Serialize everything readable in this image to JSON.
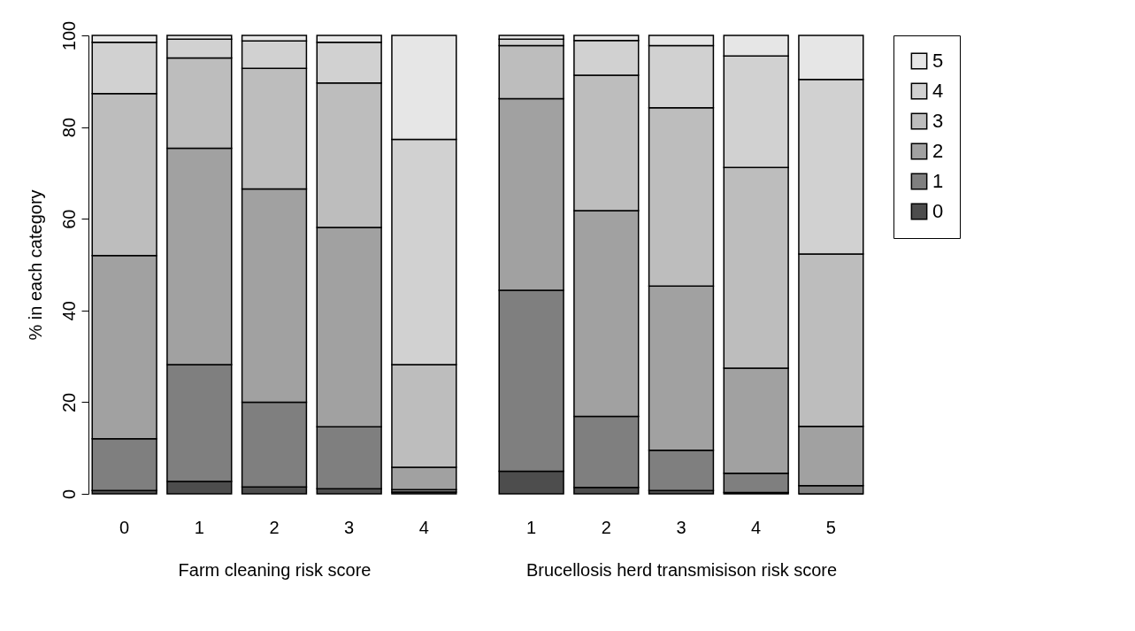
{
  "chart_data": [
    {
      "type": "bar",
      "stacked": true,
      "xlabel": "Farm cleaning risk score",
      "ylabel": "% in each category",
      "categories": [
        "0",
        "1",
        "2",
        "3",
        "4"
      ],
      "ylim": [
        0,
        100
      ],
      "yticks": [
        0,
        20,
        40,
        60,
        80,
        100
      ],
      "legend": false,
      "series": [
        {
          "color": "#4d4d4d",
          "values": [
            0.7,
            2.7,
            1.5,
            1.1,
            0.4
          ]
        },
        {
          "color": "#7f7f7f",
          "values": [
            11.3,
            25.5,
            18.5,
            13.5,
            0.5
          ]
        },
        {
          "color": "#a1a1a1",
          "values": [
            40,
            47.2,
            46.5,
            43.5,
            4.9
          ]
        },
        {
          "color": "#bdbdbd",
          "values": [
            35.3,
            19.7,
            26.3,
            31.5,
            22.4
          ]
        },
        {
          "color": "#d1d1d1",
          "values": [
            11.2,
            4.1,
            6,
            8.9,
            49.1
          ]
        },
        {
          "color": "#e6e6e6",
          "values": [
            1.5,
            0.8,
            1.2,
            1.5,
            22.7
          ]
        }
      ]
    },
    {
      "type": "bar",
      "stacked": true,
      "xlabel": "Brucellosis herd transmisison risk score",
      "categories": [
        "1",
        "2",
        "3",
        "4",
        "5"
      ],
      "ylim": [
        0,
        100
      ],
      "yticks": [
        0,
        20,
        40,
        60,
        80,
        100
      ],
      "tick_labels": "x",
      "legend": "right",
      "series": [
        {
          "name": "0",
          "color": "#4d4d4d",
          "values": [
            4.9,
            1.4,
            0.7,
            0.3,
            0
          ]
        },
        {
          "name": "1",
          "color": "#7f7f7f",
          "values": [
            39.5,
            15.5,
            8.8,
            4.2,
            1.8
          ]
        },
        {
          "name": "2",
          "color": "#a1a1a1",
          "values": [
            41.8,
            44.9,
            35.8,
            22.9,
            12.9
          ]
        },
        {
          "name": "3",
          "color": "#bdbdbd",
          "values": [
            11.6,
            29.5,
            38.9,
            43.8,
            37.6
          ]
        },
        {
          "name": "4",
          "color": "#d1d1d1",
          "values": [
            1.4,
            7.6,
            13.6,
            24.3,
            38.1
          ]
        },
        {
          "name": "5",
          "color": "#e6e6e6",
          "values": [
            0.8,
            1.1,
            2.2,
            4.5,
            9.6
          ]
        }
      ]
    }
  ]
}
